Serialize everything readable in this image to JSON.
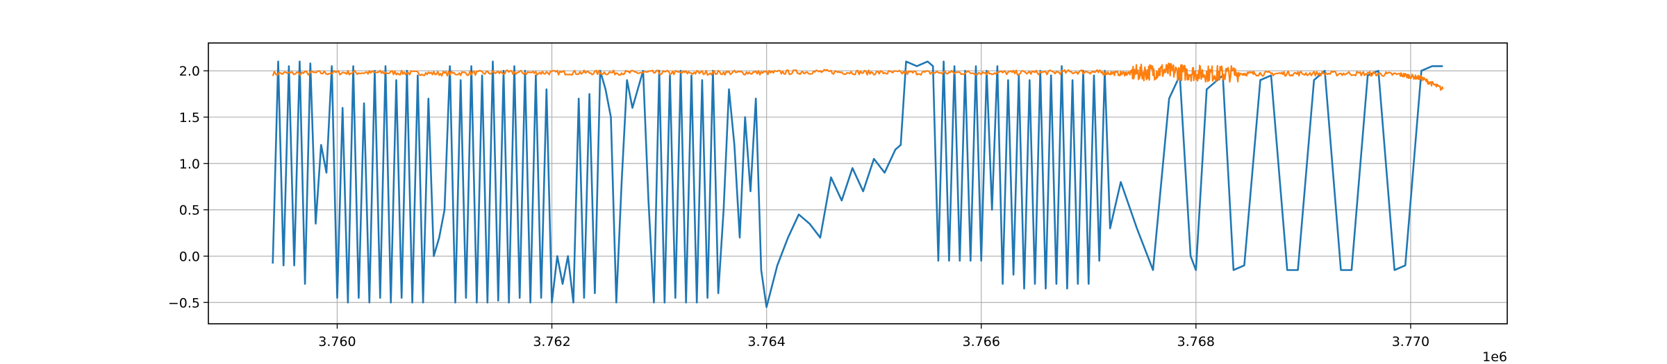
{
  "chart_data": {
    "type": "line",
    "title": "",
    "xlabel": "",
    "ylabel": "",
    "x_offset_label": "1e6",
    "xlim": [
      3758800,
      3770900
    ],
    "ylim": [
      -0.73,
      2.3
    ],
    "grid": true,
    "x_ticks": [
      3760000,
      3762000,
      3764000,
      3766000,
      3768000,
      3770000
    ],
    "x_tick_labels": [
      "3.760",
      "3.762",
      "3.764",
      "3.766",
      "3.768",
      "3.770"
    ],
    "y_ticks": [
      -0.5,
      0.0,
      0.5,
      1.0,
      1.5,
      2.0
    ],
    "y_tick_labels": [
      "−0.5",
      "0.0",
      "0.5",
      "1.0",
      "1.5",
      "2.0"
    ],
    "series": [
      {
        "color": "#1f77b4",
        "x": [
          3759400,
          3759450,
          3759500,
          3759550,
          3759600,
          3759650,
          3759700,
          3759750,
          3759800,
          3759850,
          3759900,
          3759950,
          3760000,
          3760050,
          3760100,
          3760150,
          3760200,
          3760250,
          3760300,
          3760350,
          3760400,
          3760450,
          3760500,
          3760550,
          3760600,
          3760650,
          3760700,
          3760750,
          3760800,
          3760850,
          3760900,
          3760950,
          3761000,
          3761050,
          3761100,
          3761150,
          3761200,
          3761250,
          3761300,
          3761350,
          3761400,
          3761450,
          3761500,
          3761550,
          3761600,
          3761650,
          3761700,
          3761750,
          3761800,
          3761850,
          3761900,
          3761950,
          3762000,
          3762050,
          3762100,
          3762150,
          3762200,
          3762250,
          3762300,
          3762350,
          3762400,
          3762450,
          3762500,
          3762550,
          3762600,
          3762650,
          3762700,
          3762750,
          3762800,
          3762850,
          3762900,
          3762950,
          3763000,
          3763050,
          3763100,
          3763150,
          3763200,
          3763250,
          3763300,
          3763350,
          3763400,
          3763450,
          3763500,
          3763550,
          3763600,
          3763650,
          3763700,
          3763750,
          3763800,
          3763850,
          3763900,
          3763950,
          3764000,
          3764100,
          3764200,
          3764300,
          3764400,
          3764500,
          3764600,
          3764700,
          3764800,
          3764900,
          3765000,
          3765100,
          3765200,
          3765250,
          3765300,
          3765400,
          3765500,
          3765550,
          3765600,
          3765650,
          3765700,
          3765750,
          3765800,
          3765850,
          3765900,
          3765950,
          3766000,
          3766050,
          3766100,
          3766150,
          3766200,
          3766250,
          3766300,
          3766350,
          3766400,
          3766450,
          3766500,
          3766550,
          3766600,
          3766650,
          3766700,
          3766750,
          3766800,
          3766850,
          3766900,
          3766950,
          3767000,
          3767050,
          3767100,
          3767150,
          3767200,
          3767300,
          3767450,
          3767600,
          3767750,
          3767850,
          3767950,
          3768000,
          3768100,
          3768250,
          3768350,
          3768450,
          3768600,
          3768700,
          3768850,
          3768950,
          3769100,
          3769200,
          3769350,
          3769450,
          3769600,
          3769700,
          3769850,
          3769950,
          3770100,
          3770200,
          3770300
        ],
        "y": [
          -0.08,
          2.1,
          -0.1,
          2.05,
          -0.1,
          2.1,
          -0.3,
          2.08,
          0.35,
          1.2,
          0.9,
          2.05,
          -0.45,
          1.6,
          -0.5,
          2.05,
          -0.45,
          1.65,
          -0.5,
          2.0,
          -0.45,
          2.05,
          -0.5,
          1.9,
          -0.45,
          2.0,
          -0.5,
          1.95,
          -0.5,
          1.7,
          0.0,
          0.2,
          0.5,
          2.05,
          -0.5,
          1.9,
          -0.45,
          2.05,
          -0.5,
          1.95,
          -0.5,
          2.1,
          -0.48,
          2.0,
          -0.5,
          2.05,
          -0.45,
          2.0,
          -0.5,
          1.95,
          -0.45,
          1.8,
          -0.5,
          0.0,
          -0.3,
          0.0,
          -0.5,
          1.7,
          -0.45,
          1.75,
          -0.4,
          2.0,
          1.8,
          1.5,
          -0.5,
          0.8,
          1.9,
          1.6,
          1.8,
          2.0,
          0.6,
          -0.5,
          2.0,
          -0.5,
          1.95,
          -0.45,
          2.0,
          -0.5,
          1.95,
          -0.5,
          1.9,
          -0.45,
          2.0,
          -0.4,
          0.5,
          1.8,
          1.2,
          0.2,
          1.5,
          0.7,
          1.7,
          -0.15,
          -0.55,
          -0.1,
          0.2,
          0.45,
          0.35,
          0.2,
          0.85,
          0.6,
          0.95,
          0.7,
          1.05,
          0.9,
          1.15,
          1.2,
          2.1,
          2.05,
          2.1,
          2.05,
          -0.05,
          2.1,
          -0.05,
          2.05,
          -0.05,
          2.0,
          -0.05,
          2.05,
          -0.05,
          2.0,
          0.5,
          2.05,
          -0.3,
          1.9,
          -0.2,
          1.95,
          -0.35,
          1.9,
          -0.3,
          2.0,
          -0.35,
          1.95,
          -0.3,
          2.05,
          -0.35,
          1.9,
          -0.3,
          2.0,
          -0.3,
          1.95,
          -0.05,
          2.0,
          0.3,
          0.8,
          0.3,
          -0.15,
          1.7,
          1.95,
          0.0,
          -0.15,
          1.8,
          1.95,
          -0.15,
          -0.1,
          1.9,
          1.95,
          -0.15,
          -0.15,
          1.9,
          2.0,
          -0.15,
          -0.15,
          1.95,
          2.0,
          -0.15,
          -0.1,
          2.0,
          2.05,
          2.05
        ]
      },
      {
        "color": "#ff7f0e",
        "x": [
          3759400,
          3760000,
          3760500,
          3761000,
          3761500,
          3762000,
          3762500,
          3763000,
          3763500,
          3764000,
          3764500,
          3765000,
          3765500,
          3766000,
          3766500,
          3767000,
          3767300,
          3767500,
          3767700,
          3767900,
          3768100,
          3768300,
          3768600,
          3769000,
          3769500,
          3769900,
          3770100,
          3770300
        ],
        "y": [
          1.97,
          1.98,
          1.98,
          1.97,
          1.98,
          1.98,
          1.98,
          1.98,
          1.98,
          1.98,
          1.99,
          1.98,
          1.98,
          1.98,
          1.98,
          1.99,
          1.97,
          1.98,
          2.0,
          1.98,
          1.97,
          1.97,
          1.97,
          1.97,
          1.97,
          1.96,
          1.92,
          1.8
        ]
      }
    ]
  }
}
